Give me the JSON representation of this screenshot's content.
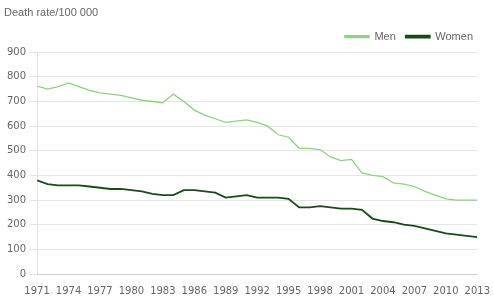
{
  "chart_data": {
    "type": "line",
    "ylabel": "Death rate/100 000",
    "x": [
      1971,
      1972,
      1973,
      1974,
      1975,
      1976,
      1977,
      1978,
      1979,
      1980,
      1981,
      1982,
      1983,
      1984,
      1985,
      1986,
      1987,
      1988,
      1989,
      1990,
      1991,
      1992,
      1993,
      1994,
      1995,
      1996,
      1997,
      1998,
      1999,
      2000,
      2001,
      2002,
      2003,
      2004,
      2005,
      2006,
      2007,
      2008,
      2009,
      2010,
      2011,
      2012,
      2013
    ],
    "series": [
      {
        "name": "Men",
        "color": "#90d080",
        "values": [
          762,
          750,
          760,
          775,
          760,
          745,
          735,
          730,
          725,
          715,
          705,
          700,
          695,
          730,
          700,
          665,
          645,
          630,
          615,
          620,
          625,
          615,
          600,
          565,
          555,
          510,
          510,
          505,
          475,
          460,
          465,
          410,
          400,
          395,
          370,
          365,
          355,
          335,
          320,
          305,
          300,
          300,
          300
        ]
      },
      {
        "name": "Women",
        "color": "#1a4a1a",
        "values": [
          380,
          365,
          360,
          360,
          360,
          355,
          350,
          345,
          345,
          340,
          335,
          325,
          320,
          320,
          340,
          340,
          335,
          330,
          310,
          315,
          320,
          310,
          310,
          310,
          305,
          270,
          270,
          275,
          270,
          265,
          265,
          260,
          225,
          215,
          210,
          200,
          195,
          185,
          175,
          165,
          160,
          155,
          150
        ]
      }
    ],
    "xlim": [
      1971,
      2013
    ],
    "xticks": [
      1971,
      1974,
      1977,
      1980,
      1983,
      1986,
      1989,
      1992,
      1995,
      1998,
      2001,
      2004,
      2007,
      2010,
      2013
    ],
    "ylim": [
      0,
      900
    ],
    "yticks": [
      0,
      100,
      200,
      300,
      400,
      500,
      600,
      700,
      800,
      900
    ],
    "grid": "y",
    "legend": "upper right"
  }
}
